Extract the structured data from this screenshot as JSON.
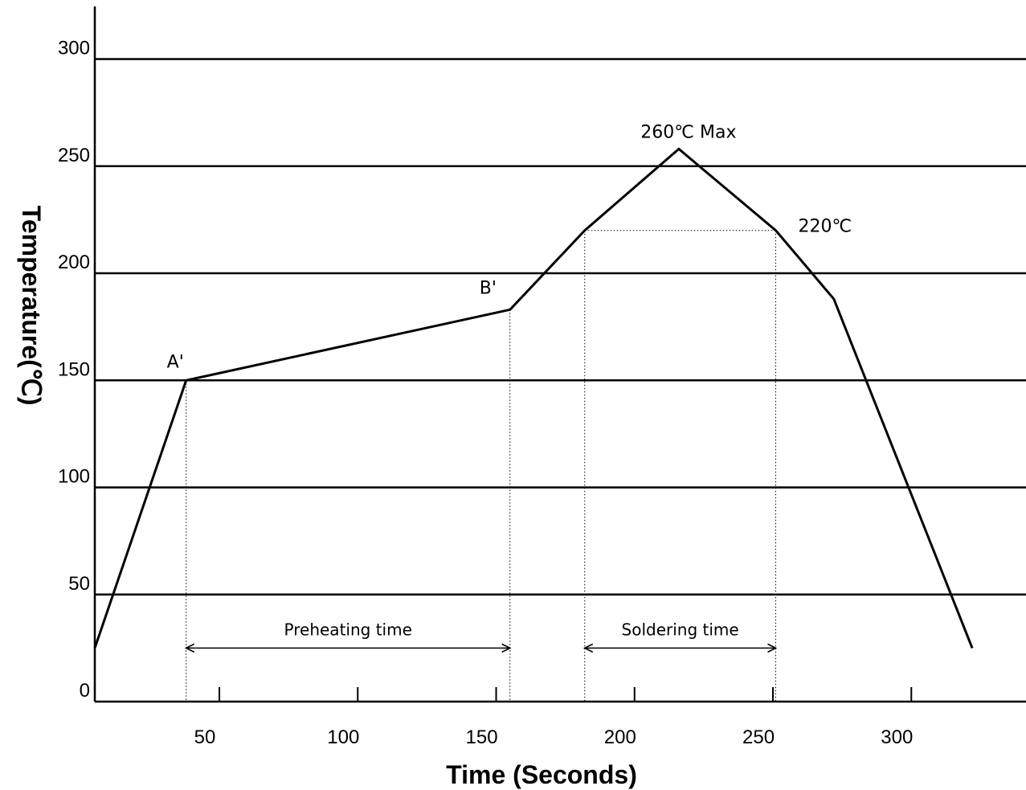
{
  "chart_data": {
    "type": "line",
    "title": "",
    "xlabel": "Time (Seconds)",
    "ylabel": "Temperature(℃)",
    "xlim": [
      5,
      340
    ],
    "ylim": [
      0,
      320
    ],
    "xticks": [
      50,
      100,
      150,
      200,
      250,
      300
    ],
    "yticks": [
      0,
      50,
      100,
      150,
      200,
      250,
      300
    ],
    "grid": "horizontal",
    "series": [
      {
        "x": [
          5,
          38,
          155,
          182,
          216,
          251,
          272,
          322
        ],
        "y": [
          25,
          150,
          183,
          220,
          258,
          220,
          188,
          25
        ]
      }
    ],
    "annotations": {
      "a_label": "A'",
      "b_label": "B'",
      "peak_label": "260℃ Max",
      "liquidus_label": "220℃",
      "preheat_label": "Preheating time",
      "solder_label": "Soldering time"
    },
    "points": {
      "a": [
        38,
        150
      ],
      "b": [
        155,
        183
      ],
      "peak": [
        216,
        258
      ],
      "liquidus_start": [
        182,
        220
      ],
      "liquidus_end": [
        251,
        220
      ]
    },
    "preheat_range": [
      38,
      155
    ],
    "solder_range": [
      182,
      251
    ],
    "range_arrow_y": 25
  }
}
